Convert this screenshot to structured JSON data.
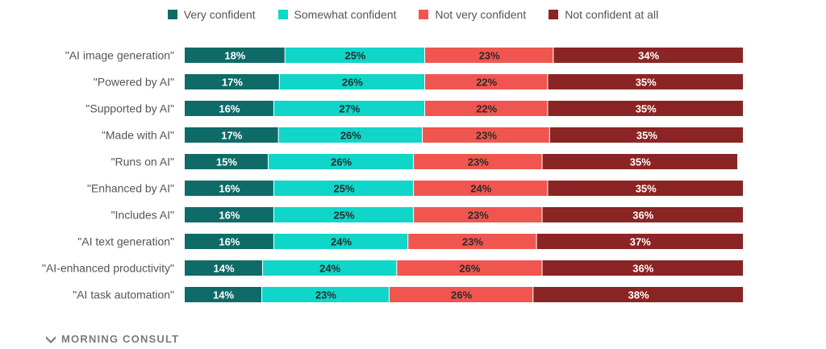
{
  "brand": {
    "name": "MORNING CONSULT"
  },
  "colors": {
    "very_confident": "#0f6b67",
    "somewhat_confident": "#0fd6c9",
    "not_very_confident": "#f0564f",
    "not_confident_at_all": "#8b2424"
  },
  "chart_data": {
    "type": "bar",
    "orientation": "horizontal",
    "stacked": true,
    "title": "",
    "xlabel": "",
    "ylabel": "",
    "xlim": [
      0,
      100
    ],
    "legend_position": "top",
    "categories": [
      "\"AI image generation\"",
      "\"Powered by AI\"",
      "\"Supported by AI\"",
      "\"Made with AI\"",
      "\"Runs on AI\"",
      "\"Enhanced by AI\"",
      "\"Includes AI\"",
      "\"AI text generation\"",
      "\"AI-enhanced productivity\"",
      "\"AI task automation\""
    ],
    "series": [
      {
        "name": "Very confident",
        "color": "#0f6b67",
        "label_color": "#ffffff",
        "values": [
          18,
          17,
          16,
          17,
          15,
          16,
          16,
          16,
          14,
          14
        ]
      },
      {
        "name": "Somewhat confident",
        "color": "#0fd6c9",
        "label_color": "#2b2b2b",
        "values": [
          25,
          26,
          27,
          26,
          26,
          25,
          25,
          24,
          24,
          23
        ]
      },
      {
        "name": "Not very confident",
        "color": "#f0564f",
        "label_color": "#2b2b2b",
        "values": [
          23,
          22,
          22,
          23,
          23,
          24,
          23,
          23,
          26,
          26
        ]
      },
      {
        "name": "Not confident at all",
        "color": "#8b2424",
        "label_color": "#ffffff",
        "values": [
          34,
          35,
          35,
          35,
          35,
          35,
          36,
          37,
          36,
          38
        ]
      }
    ],
    "value_suffix": "%"
  }
}
